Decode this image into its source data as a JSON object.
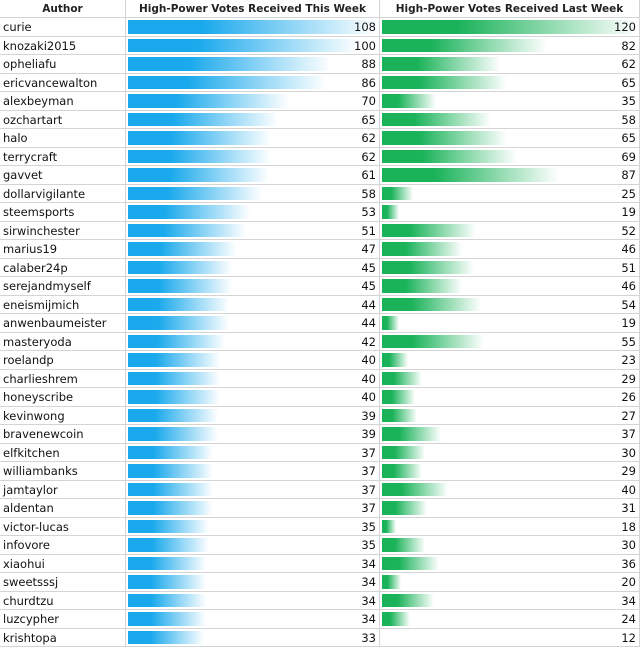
{
  "table": {
    "header": [
      "Author",
      "High-Power Votes Received This Week",
      "High-Power Votes Received Last Week"
    ],
    "rows": [
      [
        "curie",
        108,
        120
      ],
      [
        "knozaki2015",
        100,
        82
      ],
      [
        "opheliafu",
        88,
        62
      ],
      [
        "ericvancewalton",
        86,
        65
      ],
      [
        "alexbeyman",
        70,
        35
      ],
      [
        "ozchartart",
        65,
        58
      ],
      [
        "halo",
        62,
        65
      ],
      [
        "terrycraft",
        62,
        69
      ],
      [
        "gavvet",
        61,
        87
      ],
      [
        "dollarvigilante",
        58,
        25
      ],
      [
        "steemsports",
        53,
        19
      ],
      [
        "sirwinchester",
        51,
        52
      ],
      [
        "marius19",
        47,
        46
      ],
      [
        "calaber24p",
        45,
        51
      ],
      [
        "serejandmyself",
        45,
        46
      ],
      [
        "eneismijmich",
        44,
        54
      ],
      [
        "anwenbaumeister",
        44,
        19
      ],
      [
        "masteryoda",
        42,
        55
      ],
      [
        "roelandp",
        40,
        23
      ],
      [
        "charlieshrem",
        40,
        29
      ],
      [
        "honeyscribe",
        40,
        26
      ],
      [
        "kevinwong",
        39,
        27
      ],
      [
        "bravenewcoin",
        39,
        37
      ],
      [
        "elfkitchen",
        37,
        30
      ],
      [
        "williambanks",
        37,
        29
      ],
      [
        "jamtaylor",
        37,
        40
      ],
      [
        "aldentan",
        37,
        31
      ],
      [
        "victor-lucas",
        35,
        18
      ],
      [
        "infovore",
        35,
        30
      ],
      [
        "xiaohui",
        34,
        36
      ],
      [
        "sweetsssj",
        34,
        20
      ],
      [
        "churdtzu",
        34,
        34
      ],
      [
        "luzcypher",
        34,
        24
      ],
      [
        "krishtopa",
        33,
        12
      ]
    ]
  }
}
